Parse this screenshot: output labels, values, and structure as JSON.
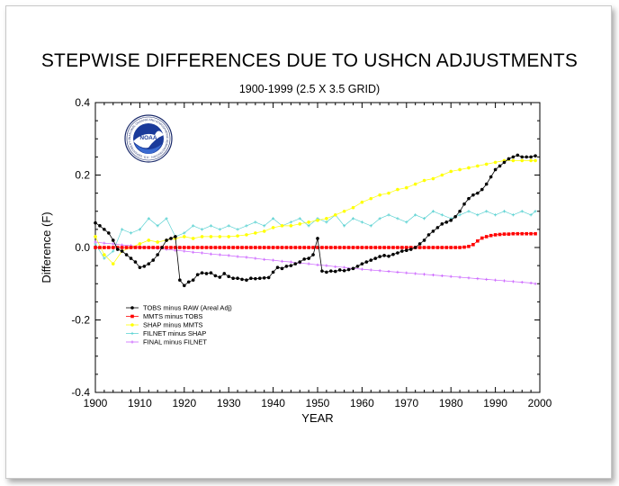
{
  "chart_data": {
    "type": "line",
    "title": "STEPWISE DIFFERENCES DUE TO USHCN ADJUSTMENTS",
    "subtitle": "1900-1999 (2.5 X 3.5 GRID)",
    "xlabel": "YEAR",
    "ylabel": "Difference (F)",
    "xlim": [
      1900,
      2000
    ],
    "ylim": [
      -0.4,
      0.4
    ],
    "xticks": [
      "1900",
      "1910",
      "1920",
      "1930",
      "1940",
      "1950",
      "1960",
      "1970",
      "1980",
      "1990",
      "2000"
    ],
    "yticks": [
      "-0.4",
      "-0.2",
      "0.0",
      "0.2",
      "0.4"
    ],
    "grid": false,
    "legend_position": "lower-left",
    "series": [
      {
        "name": "TOBS minus RAW (Areal Adj)",
        "color": "#000000",
        "marker": "dot",
        "x": [
          1900,
          1901,
          1902,
          1903,
          1904,
          1905,
          1906,
          1907,
          1908,
          1909,
          1910,
          1911,
          1912,
          1913,
          1914,
          1915,
          1916,
          1917,
          1918,
          1919,
          1920,
          1921,
          1922,
          1923,
          1924,
          1925,
          1926,
          1927,
          1928,
          1929,
          1930,
          1931,
          1932,
          1933,
          1934,
          1935,
          1936,
          1937,
          1938,
          1939,
          1940,
          1941,
          1942,
          1943,
          1944,
          1945,
          1946,
          1947,
          1948,
          1949,
          1950,
          1951,
          1952,
          1953,
          1954,
          1955,
          1956,
          1957,
          1958,
          1959,
          1960,
          1961,
          1962,
          1963,
          1964,
          1965,
          1966,
          1967,
          1968,
          1969,
          1970,
          1971,
          1972,
          1973,
          1974,
          1975,
          1976,
          1977,
          1978,
          1979,
          1980,
          1981,
          1982,
          1983,
          1984,
          1985,
          1986,
          1987,
          1988,
          1989,
          1990,
          1991,
          1992,
          1993,
          1994,
          1995,
          1996,
          1997,
          1998,
          1999
        ],
        "values": [
          0.068,
          0.06,
          0.05,
          0.04,
          0.02,
          -0.005,
          -0.01,
          -0.02,
          -0.03,
          -0.04,
          -0.055,
          -0.052,
          -0.045,
          -0.035,
          -0.02,
          0.0,
          0.02,
          0.025,
          0.03,
          -0.09,
          -0.105,
          -0.095,
          -0.09,
          -0.075,
          -0.07,
          -0.072,
          -0.07,
          -0.078,
          -0.082,
          -0.072,
          -0.08,
          -0.085,
          -0.085,
          -0.088,
          -0.09,
          -0.085,
          -0.086,
          -0.085,
          -0.084,
          -0.083,
          -0.068,
          -0.055,
          -0.058,
          -0.052,
          -0.05,
          -0.045,
          -0.04,
          -0.032,
          -0.03,
          -0.02,
          0.025,
          -0.065,
          -0.068,
          -0.065,
          -0.066,
          -0.062,
          -0.064,
          -0.061,
          -0.058,
          -0.052,
          -0.045,
          -0.04,
          -0.035,
          -0.03,
          -0.025,
          -0.022,
          -0.024,
          -0.019,
          -0.015,
          -0.01,
          -0.008,
          -0.005,
          0.0,
          0.01,
          0.02,
          0.035,
          0.045,
          0.055,
          0.065,
          0.07,
          0.075,
          0.085,
          0.1,
          0.12,
          0.135,
          0.145,
          0.15,
          0.16,
          0.175,
          0.195,
          0.215,
          0.225,
          0.235,
          0.245,
          0.25,
          0.255,
          0.25,
          0.25,
          0.25,
          0.253
        ]
      },
      {
        "name": "MMTS minus TOBS",
        "color": "#ff0000",
        "marker": "square",
        "x": [
          1900,
          1901,
          1902,
          1903,
          1904,
          1905,
          1906,
          1907,
          1908,
          1909,
          1910,
          1911,
          1912,
          1913,
          1914,
          1915,
          1916,
          1917,
          1918,
          1919,
          1920,
          1921,
          1922,
          1923,
          1924,
          1925,
          1926,
          1927,
          1928,
          1929,
          1930,
          1931,
          1932,
          1933,
          1934,
          1935,
          1936,
          1937,
          1938,
          1939,
          1940,
          1941,
          1942,
          1943,
          1944,
          1945,
          1946,
          1947,
          1948,
          1949,
          1950,
          1951,
          1952,
          1953,
          1954,
          1955,
          1956,
          1957,
          1958,
          1959,
          1960,
          1961,
          1962,
          1963,
          1964,
          1965,
          1966,
          1967,
          1968,
          1969,
          1970,
          1971,
          1972,
          1973,
          1974,
          1975,
          1976,
          1977,
          1978,
          1979,
          1980,
          1981,
          1982,
          1983,
          1984,
          1985,
          1986,
          1987,
          1988,
          1989,
          1990,
          1991,
          1992,
          1993,
          1994,
          1995,
          1996,
          1997,
          1998,
          1999
        ],
        "values": [
          0.0,
          0.0,
          0.0,
          0.0,
          0.0,
          0.0,
          0.0,
          0.0,
          0.0,
          0.0,
          0.0,
          0.0,
          0.0,
          0.0,
          0.0,
          0.0,
          0.0,
          0.0,
          0.0,
          0.0,
          0.0,
          0.0,
          0.0,
          0.0,
          0.0,
          0.0,
          0.0,
          0.0,
          0.0,
          0.0,
          0.0,
          0.0,
          0.0,
          0.0,
          0.0,
          0.0,
          0.0,
          0.0,
          0.0,
          0.0,
          0.0,
          0.0,
          0.0,
          0.0,
          0.0,
          0.0,
          0.0,
          0.0,
          0.0,
          0.0,
          0.0,
          0.0,
          0.0,
          0.0,
          0.0,
          0.0,
          0.0,
          0.0,
          0.0,
          0.0,
          0.0,
          0.0,
          0.0,
          0.0,
          0.0,
          0.0,
          0.0,
          0.0,
          0.0,
          0.0,
          0.0,
          0.0,
          0.0,
          0.0,
          0.0,
          0.0,
          0.0,
          0.0,
          0.0,
          0.0,
          0.0,
          0.0,
          0.0,
          0.001,
          0.003,
          0.008,
          0.018,
          0.026,
          0.03,
          0.033,
          0.035,
          0.036,
          0.037,
          0.037,
          0.038,
          0.038,
          0.038,
          0.038,
          0.038,
          0.038
        ]
      },
      {
        "name": "SHAP minus MMTS",
        "color": "#ffff00",
        "marker": "dot",
        "x": [
          1900,
          1902,
          1904,
          1906,
          1908,
          1910,
          1912,
          1914,
          1916,
          1918,
          1920,
          1922,
          1924,
          1926,
          1928,
          1930,
          1932,
          1934,
          1936,
          1938,
          1940,
          1942,
          1944,
          1946,
          1948,
          1950,
          1952,
          1954,
          1956,
          1958,
          1960,
          1962,
          1964,
          1966,
          1968,
          1970,
          1972,
          1974,
          1976,
          1978,
          1980,
          1982,
          1984,
          1986,
          1988,
          1990,
          1992,
          1994,
          1996,
          1998,
          1999
        ],
        "values": [
          0.03,
          -0.02,
          -0.045,
          -0.01,
          0.0,
          0.01,
          0.02,
          0.015,
          0.02,
          0.025,
          0.03,
          0.025,
          0.03,
          0.03,
          0.03,
          0.03,
          0.032,
          0.035,
          0.04,
          0.045,
          0.055,
          0.06,
          0.06,
          0.065,
          0.07,
          0.075,
          0.08,
          0.09,
          0.1,
          0.11,
          0.125,
          0.135,
          0.145,
          0.15,
          0.16,
          0.165,
          0.175,
          0.185,
          0.19,
          0.2,
          0.21,
          0.215,
          0.22,
          0.225,
          0.23,
          0.235,
          0.24,
          0.24,
          0.24,
          0.24,
          0.24
        ]
      },
      {
        "name": "FILNET minus SHAP",
        "color": "#5fd3d3",
        "marker": "plus",
        "x": [
          1900,
          1902,
          1904,
          1906,
          1908,
          1910,
          1912,
          1914,
          1916,
          1918,
          1920,
          1922,
          1924,
          1926,
          1928,
          1930,
          1932,
          1934,
          1936,
          1938,
          1940,
          1942,
          1944,
          1946,
          1948,
          1950,
          1952,
          1954,
          1956,
          1958,
          1960,
          1962,
          1964,
          1966,
          1968,
          1970,
          1972,
          1974,
          1976,
          1978,
          1980,
          1982,
          1984,
          1986,
          1988,
          1990,
          1992,
          1994,
          1996,
          1998,
          1999
        ],
        "values": [
          0.01,
          -0.03,
          -0.01,
          0.05,
          0.04,
          0.05,
          0.08,
          0.06,
          0.08,
          0.03,
          0.04,
          0.06,
          0.05,
          0.06,
          0.05,
          0.06,
          0.05,
          0.06,
          0.07,
          0.06,
          0.08,
          0.06,
          0.07,
          0.08,
          0.06,
          0.08,
          0.07,
          0.09,
          0.06,
          0.08,
          0.07,
          0.06,
          0.08,
          0.09,
          0.08,
          0.07,
          0.09,
          0.08,
          0.1,
          0.09,
          0.08,
          0.09,
          0.1,
          0.09,
          0.1,
          0.09,
          0.1,
          0.09,
          0.1,
          0.09,
          0.1
        ]
      },
      {
        "name": "FINAL minus FILNET",
        "color": "#cc66ff",
        "marker": "plus",
        "x": [
          1900,
          1902,
          1904,
          1906,
          1908,
          1910,
          1912,
          1914,
          1916,
          1918,
          1920,
          1922,
          1924,
          1926,
          1928,
          1930,
          1932,
          1934,
          1936,
          1938,
          1940,
          1942,
          1944,
          1946,
          1948,
          1950,
          1952,
          1954,
          1956,
          1958,
          1960,
          1962,
          1964,
          1966,
          1968,
          1970,
          1972,
          1974,
          1976,
          1978,
          1980,
          1982,
          1984,
          1986,
          1988,
          1990,
          1992,
          1994,
          1996,
          1998,
          1999
        ],
        "values": [
          0.015,
          0.012,
          0.01,
          0.007,
          0.005,
          0.002,
          0.0,
          -0.003,
          -0.005,
          -0.008,
          -0.01,
          -0.013,
          -0.015,
          -0.018,
          -0.02,
          -0.022,
          -0.025,
          -0.027,
          -0.03,
          -0.033,
          -0.035,
          -0.038,
          -0.04,
          -0.043,
          -0.045,
          -0.048,
          -0.05,
          -0.053,
          -0.055,
          -0.058,
          -0.06,
          -0.062,
          -0.064,
          -0.066,
          -0.068,
          -0.07,
          -0.072,
          -0.074,
          -0.076,
          -0.078,
          -0.08,
          -0.082,
          -0.084,
          -0.086,
          -0.088,
          -0.09,
          -0.092,
          -0.094,
          -0.096,
          -0.098,
          -0.1
        ]
      }
    ]
  },
  "logo": {
    "text": "NOAA",
    "ring_text": "NATIONAL OCEANIC AND ATMOSPHERIC ADMINISTRATION · U.S. DEPARTMENT OF COMMERCE"
  }
}
